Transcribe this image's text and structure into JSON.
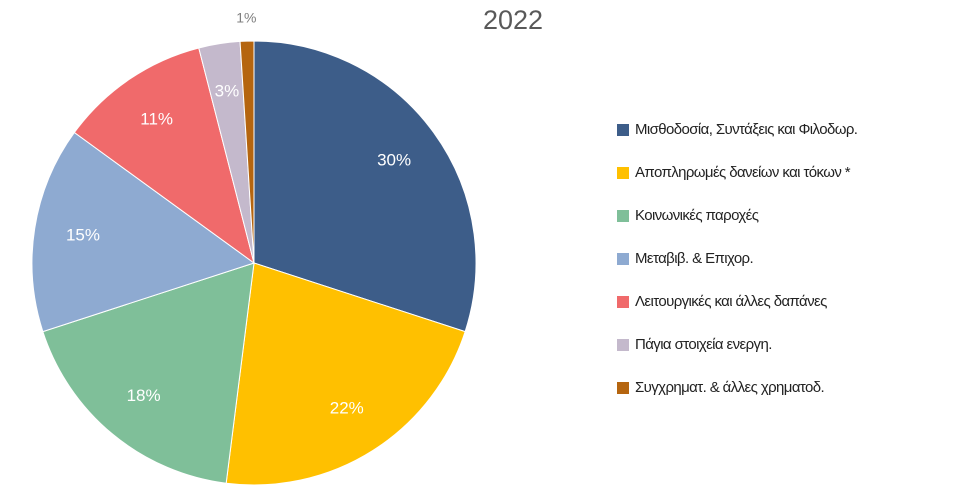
{
  "chart_data": {
    "type": "pie",
    "title": "2022",
    "categories": [
      "Μισθοδοσία, Συντάξεις και Φιλοδωρ.",
      "Αποπληρωμές δανείων και τόκων *",
      "Κοινωνικές παροχές",
      "Μεταβιβ. & Επιχορ.",
      "Λειτουργικές και άλλες δαπάνες",
      "Πάγια στοιχεία ενεργη.",
      "Συγχρηματ. & άλλες χρηματοδ."
    ],
    "values": [
      30,
      22,
      18,
      15,
      11,
      3,
      1
    ],
    "value_labels": [
      "30%",
      "22%",
      "18%",
      "15%",
      "11%",
      "3%",
      "1%"
    ],
    "colors": [
      "#3d5d89",
      "#ffc000",
      "#7fbf99",
      "#8eaad1",
      "#f06a6b",
      "#c4b9cc",
      "#b5650f"
    ],
    "legend": "right"
  }
}
